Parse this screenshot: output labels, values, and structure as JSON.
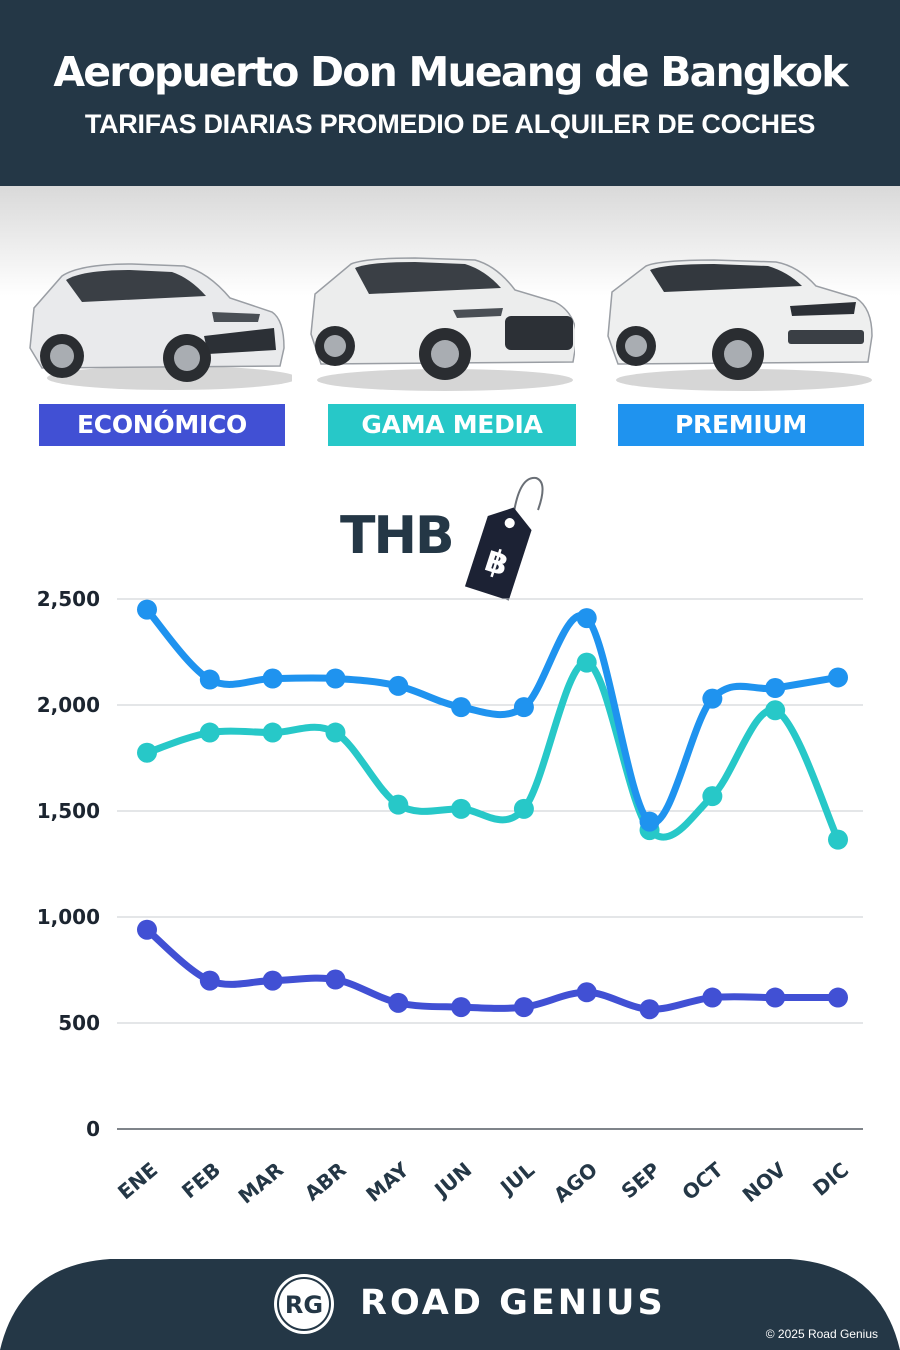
{
  "header": {
    "title": "Aeropuerto Don Mueang de Bangkok",
    "subtitle": "TARIFAS DIARIAS PROMEDIO DE ALQUILER DE COCHES"
  },
  "categories": [
    {
      "label": "ECONÓMICO",
      "color": "#4150d4",
      "icon": "hatchback-car"
    },
    {
      "label": "GAMA MEDIA",
      "color": "#27c8c8",
      "icon": "suv-car"
    },
    {
      "label": "PREMIUM",
      "color": "#1f93ef",
      "icon": "luxury-suv-car"
    }
  ],
  "currency": {
    "label": "THB",
    "symbol": "฿",
    "icon": "price-tag-icon"
  },
  "chart_data": {
    "type": "line",
    "categories": [
      "ENE",
      "FEB",
      "MAR",
      "ABR",
      "MAY",
      "JUN",
      "JUL",
      "AGO",
      "SEP",
      "OCT",
      "NOV",
      "DIC"
    ],
    "series": [
      {
        "name": "ECONÓMICO",
        "color": "#4150d4",
        "values": [
          940,
          700,
          700,
          705,
          595,
          575,
          575,
          645,
          565,
          620,
          620,
          620
        ]
      },
      {
        "name": "GAMA MEDIA",
        "color": "#27c8c8",
        "values": [
          1775,
          1870,
          1870,
          1870,
          1530,
          1510,
          1510,
          2200,
          1410,
          1570,
          1975,
          1365
        ]
      },
      {
        "name": "PREMIUM",
        "color": "#1f93ef",
        "values": [
          2450,
          2120,
          2125,
          2125,
          2090,
          1990,
          1990,
          2410,
          1450,
          2030,
          2080,
          2130
        ]
      }
    ],
    "ylim": [
      0,
      2500
    ],
    "yticks": [
      "0",
      "500",
      "1,000",
      "1,500",
      "2,000",
      "2,500"
    ],
    "ytick_values": [
      0,
      500,
      1000,
      1500,
      2000,
      2500
    ],
    "grid": true
  },
  "footer": {
    "logo": "RG",
    "brand": "ROAD GENIUS",
    "copyright": "© 2025 Road Genius"
  }
}
